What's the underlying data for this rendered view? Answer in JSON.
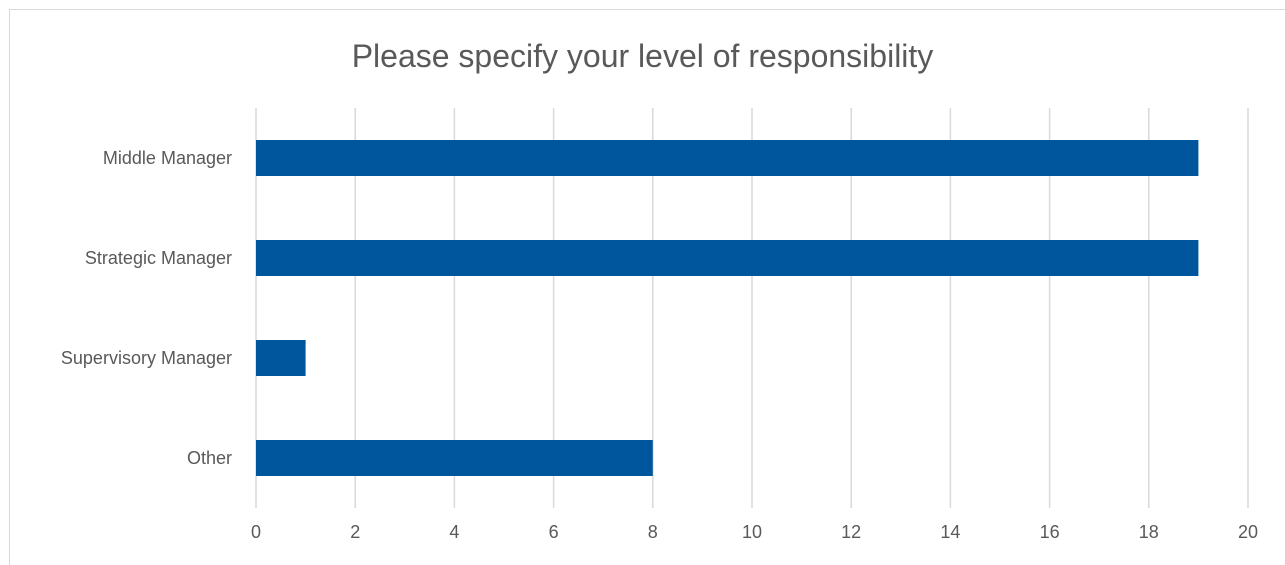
{
  "chart_data": {
    "type": "bar",
    "orientation": "horizontal",
    "title": "Please specify your level of responsibility",
    "categories": [
      "Middle Manager",
      "Strategic Manager",
      "Supervisory Manager",
      "Other"
    ],
    "values": [
      19,
      19,
      1,
      8
    ],
    "xlim": [
      0,
      20
    ],
    "x_ticks": [
      0,
      2,
      4,
      6,
      8,
      10,
      12,
      14,
      16,
      18,
      20
    ],
    "grid": "vertical",
    "bar_color": "#00569d",
    "grid_color": "#d9d9d9",
    "text_color": "#595959"
  }
}
